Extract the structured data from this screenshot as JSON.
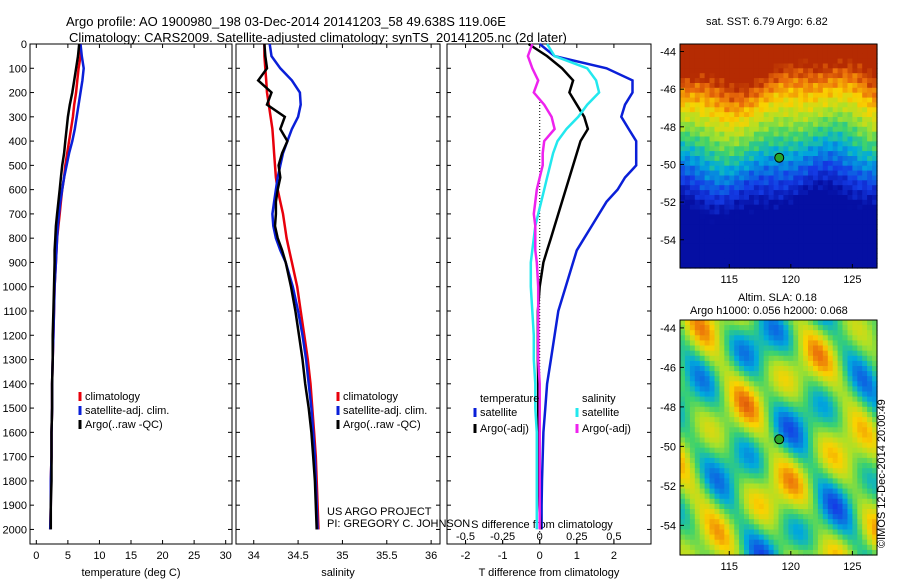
{
  "header": {
    "line1": "Argo profile: AO 1900980_198 03-Dec-2014 20141203_58 49.638S 119.06E",
    "line2": "Climatology: CARS2009. Satellite-adjusted climatology: synTS_20141205.nc (2d later)"
  },
  "colors": {
    "climatology": "#e8000b",
    "satellite": "#0a1fd8",
    "argo": "#000000",
    "satellite_salinity": "#22e8ee",
    "argo_salinity": "#ee22ee"
  },
  "depth_ticks": [
    "0",
    "100",
    "200",
    "300",
    "400",
    "500",
    "600",
    "700",
    "800",
    "900",
    "1000",
    "1100",
    "1200",
    "1300",
    "1400",
    "1500",
    "1600",
    "1700",
    "1800",
    "1900",
    "2000"
  ],
  "chart_data": [
    {
      "type": "line",
      "id": "temperature",
      "xlabel": "temperature (deg C)",
      "xlim": [
        -1,
        31
      ],
      "ylim": [
        2060,
        0
      ],
      "xticks": [
        0,
        5,
        10,
        15,
        20,
        25,
        30
      ],
      "xtick_labels": [
        "0",
        "5",
        "10",
        "15",
        "20",
        "25",
        "30"
      ],
      "depth": [
        0,
        50,
        100,
        150,
        200,
        250,
        300,
        350,
        400,
        450,
        500,
        550,
        600,
        650,
        700,
        750,
        800,
        850,
        900,
        1000,
        1100,
        1200,
        1300,
        1400,
        1500,
        1600,
        1700,
        1800,
        1900,
        2000
      ],
      "series": [
        {
          "name": "climatology",
          "color": "#e8000b",
          "values": [
            7.0,
            7.0,
            6.7,
            6.5,
            6.3,
            6.0,
            5.8,
            5.5,
            5.2,
            4.9,
            4.6,
            4.4,
            4.1,
            3.9,
            3.7,
            3.5,
            3.3,
            3.2,
            3.1,
            2.9,
            2.8,
            2.7,
            2.6,
            2.5,
            2.5,
            2.4,
            2.4,
            2.3,
            2.3,
            2.2
          ]
        },
        {
          "name": "satellite-adj. clim.",
          "color": "#0a1fd8",
          "values": [
            7.0,
            7.2,
            7.5,
            7.3,
            7.0,
            6.7,
            6.4,
            6.1,
            5.7,
            5.2,
            4.8,
            4.4,
            4.1,
            3.8,
            3.6,
            3.4,
            3.3,
            3.2,
            3.1,
            2.9,
            2.8,
            2.7,
            2.6,
            2.5,
            2.5,
            2.4,
            2.4,
            2.3,
            2.3,
            2.2
          ]
        },
        {
          "name": "Argo(..raw -QC)",
          "color": "#000000",
          "values": [
            6.8,
            6.6,
            6.3,
            6.0,
            5.7,
            5.3,
            5.0,
            4.8,
            4.6,
            4.4,
            4.1,
            3.9,
            3.7,
            3.5,
            3.3,
            3.1,
            3.0,
            2.9,
            2.9,
            2.8,
            2.7,
            2.6,
            2.6,
            2.5,
            2.5,
            2.4,
            2.4,
            2.4,
            2.3,
            2.3
          ]
        }
      ],
      "legend": [
        "climatology",
        "satellite-adj. clim.",
        "Argo(..raw -QC)"
      ],
      "legend_position": "lower-center"
    },
    {
      "type": "line",
      "id": "salinity",
      "xlabel": "salinity",
      "xlim": [
        33.8,
        36.1
      ],
      "ylim": [
        2060,
        0
      ],
      "xticks": [
        34,
        34.5,
        35,
        35.5,
        36
      ],
      "xtick_labels": [
        "34",
        "34.5",
        "35",
        "35.5",
        "36"
      ],
      "depth": [
        0,
        50,
        100,
        150,
        200,
        250,
        300,
        350,
        400,
        450,
        500,
        550,
        600,
        650,
        700,
        750,
        800,
        850,
        900,
        1000,
        1100,
        1200,
        1300,
        1400,
        1500,
        1600,
        1700,
        1800,
        1900,
        2000
      ],
      "series": [
        {
          "name": "climatology",
          "color": "#e8000b",
          "values": [
            34.12,
            34.12,
            34.13,
            34.14,
            34.15,
            34.17,
            34.19,
            34.21,
            34.22,
            34.23,
            34.24,
            34.25,
            34.27,
            34.3,
            34.33,
            34.35,
            34.37,
            34.4,
            34.43,
            34.49,
            34.53,
            34.57,
            34.61,
            34.64,
            34.66,
            34.68,
            34.7,
            34.71,
            34.72,
            34.73
          ]
        },
        {
          "name": "satellite-adj. clim.",
          "color": "#0a1fd8",
          "values": [
            34.18,
            34.2,
            34.3,
            34.43,
            34.52,
            34.53,
            34.5,
            34.43,
            34.38,
            34.33,
            34.3,
            34.27,
            34.25,
            34.23,
            34.21,
            34.22,
            34.25,
            34.3,
            34.36,
            34.44,
            34.5,
            34.55,
            34.59,
            34.62,
            34.65,
            34.67,
            34.69,
            34.7,
            34.71,
            34.72
          ]
        },
        {
          "name": "Argo(..raw -QC)",
          "color": "#000000",
          "values": [
            34.12,
            34.13,
            34.15,
            34.05,
            34.2,
            34.15,
            34.35,
            34.3,
            34.38,
            34.32,
            34.28,
            34.3,
            34.27,
            34.25,
            34.25,
            34.24,
            34.27,
            34.32,
            34.36,
            34.42,
            34.47,
            34.51,
            34.55,
            34.58,
            34.62,
            34.65,
            34.67,
            34.69,
            34.7,
            34.71
          ]
        }
      ],
      "legend": [
        "climatology",
        "satellite-adj. clim.",
        "Argo(..raw -QC)"
      ],
      "legend_position": "lower-center"
    },
    {
      "type": "line",
      "id": "difference",
      "xlabel": "T difference from climatology",
      "xlabel_top": "S difference from climatology",
      "xlim": [
        -2.5,
        3.0
      ],
      "ylim": [
        2060,
        0
      ],
      "xticks": [
        -2,
        -1,
        0,
        1,
        2
      ],
      "xtick_labels": [
        "-2",
        "-1",
        "0",
        "1",
        "2"
      ],
      "top_ticks": [
        -0.5,
        -0.25,
        0,
        0.25,
        0.5
      ],
      "top_tick_labels": [
        "-0.5",
        "-0.25",
        "0",
        "0.25",
        "0.5"
      ],
      "zero_line": "dotted",
      "depth": [
        0,
        50,
        100,
        150,
        200,
        250,
        300,
        350,
        400,
        450,
        500,
        550,
        600,
        650,
        700,
        750,
        800,
        850,
        900,
        1000,
        1100,
        1200,
        1300,
        1400,
        1500,
        1600,
        1700,
        1800,
        1900,
        2000
      ],
      "series": [
        {
          "name": "temperature satellite",
          "color": "#0a1fd8",
          "values": [
            0.0,
            0.4,
            1.8,
            2.5,
            2.5,
            2.3,
            2.2,
            2.4,
            2.6,
            2.6,
            2.6,
            2.3,
            2.1,
            1.8,
            1.6,
            1.4,
            1.2,
            1.0,
            0.9,
            0.7,
            0.5,
            0.4,
            0.3,
            0.2,
            0.15,
            0.1,
            0.08,
            0.06,
            0.05,
            0.05
          ]
        },
        {
          "name": "temperature Argo(-adj)",
          "color": "#000000",
          "values": [
            -0.3,
            0.2,
            0.6,
            0.9,
            0.8,
            1.0,
            1.2,
            1.3,
            1.1,
            1.0,
            0.9,
            0.8,
            0.7,
            0.6,
            0.5,
            0.4,
            0.3,
            0.2,
            0.1,
            0.0,
            -0.05,
            -0.05,
            -0.05,
            -0.04,
            -0.04,
            -0.03,
            -0.03,
            -0.02,
            -0.01,
            0.02
          ]
        },
        {
          "name": "salinity satellite",
          "color": "#22e8ee",
          "values": [
            0.05,
            0.1,
            0.32,
            0.38,
            0.4,
            0.32,
            0.26,
            0.18,
            0.12,
            0.09,
            0.07,
            0.05,
            0.03,
            0.01,
            -0.01,
            -0.03,
            -0.04,
            -0.05,
            -0.06,
            -0.06,
            -0.05,
            -0.04,
            -0.04,
            -0.03,
            -0.03,
            -0.02,
            -0.02,
            -0.02,
            -0.02,
            -0.02
          ]
        },
        {
          "name": "salinity Argo(-adj)",
          "color": "#ee22ee",
          "values": [
            -0.05,
            -0.08,
            -0.05,
            -0.01,
            -0.04,
            0.03,
            0.08,
            0.1,
            0.03,
            0.02,
            0.02,
            0.0,
            -0.02,
            -0.03,
            -0.04,
            -0.03,
            -0.03,
            -0.03,
            -0.02,
            -0.01,
            -0.01,
            -0.01,
            -0.01,
            0.0,
            0.0,
            0.0,
            0.0,
            0.0,
            0.0,
            0.0
          ]
        }
      ],
      "legend_temperature_title": "temperature",
      "legend_salinity_title": "salinity",
      "legend_temperature": [
        "satellite",
        "Argo(-adj)"
      ],
      "legend_salinity": [
        "satellite",
        "Argo(-adj)"
      ],
      "legend_position": "lower-center"
    },
    {
      "type": "heatmap",
      "id": "sst_map",
      "title": "sat. SST: 6.79 Argo: 6.82",
      "xticks": [
        "115",
        "120",
        "125"
      ],
      "yticks": [
        "-44",
        "-46",
        "-48",
        "-50",
        "-52",
        "-54"
      ],
      "xlim": [
        111,
        127
      ],
      "ylim": [
        -55.5,
        -43.6
      ],
      "marker": {
        "lon": 119.06,
        "lat": -49.64
      }
    },
    {
      "type": "heatmap",
      "id": "sla_map",
      "title_line1": "Altim. SLA: 0.18",
      "title_line2": "Argo h1000: 0.056 h2000: 0.068",
      "xticks": [
        "115",
        "120",
        "125"
      ],
      "yticks": [
        "-44",
        "-46",
        "-48",
        "-50",
        "-52",
        "-54"
      ],
      "xlim": [
        111,
        127
      ],
      "ylim": [
        -55.5,
        -43.6
      ],
      "marker": {
        "lon": 119.06,
        "lat": -49.64
      }
    }
  ],
  "annotations": {
    "project": "US ARGO PROJECT",
    "pi": "PI: GREGORY C. JOHNSON",
    "credit": "©IMOS 12-Dec-2014 20:00:49"
  }
}
